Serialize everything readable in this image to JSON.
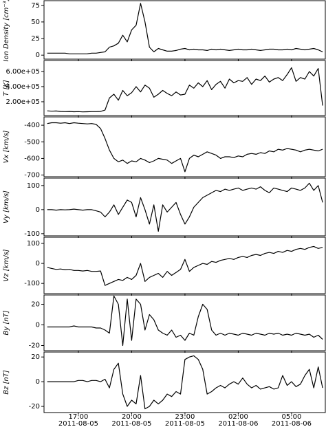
{
  "chart_data": {
    "type": "line",
    "x": [
      "2011-08-05 15:15",
      "2011-08-05 15:30",
      "2011-08-05 15:45",
      "2011-08-05 16:00",
      "2011-08-05 16:15",
      "2011-08-05 16:30",
      "2011-08-05 16:45",
      "2011-08-05 17:00",
      "2011-08-05 17:15",
      "2011-08-05 17:30",
      "2011-08-05 17:45",
      "2011-08-05 18:00",
      "2011-08-05 18:15",
      "2011-08-05 18:30",
      "2011-08-05 18:45",
      "2011-08-05 19:00",
      "2011-08-05 19:15",
      "2011-08-05 19:30",
      "2011-08-05 19:45",
      "2011-08-05 20:00",
      "2011-08-05 20:15",
      "2011-08-05 20:30",
      "2011-08-05 20:45",
      "2011-08-05 21:00",
      "2011-08-05 21:15",
      "2011-08-05 21:30",
      "2011-08-05 21:45",
      "2011-08-05 22:00",
      "2011-08-05 22:15",
      "2011-08-05 22:30",
      "2011-08-05 22:45",
      "2011-08-05 23:00",
      "2011-08-05 23:15",
      "2011-08-05 23:30",
      "2011-08-05 23:45",
      "2011-08-06 00:00",
      "2011-08-06 00:15",
      "2011-08-06 00:30",
      "2011-08-06 00:45",
      "2011-08-06 01:00",
      "2011-08-06 01:15",
      "2011-08-06 01:30",
      "2011-08-06 01:45",
      "2011-08-06 02:00",
      "2011-08-06 02:15",
      "2011-08-06 02:30",
      "2011-08-06 02:45",
      "2011-08-06 03:00",
      "2011-08-06 03:15",
      "2011-08-06 03:30",
      "2011-08-06 03:45",
      "2011-08-06 04:00",
      "2011-08-06 04:15",
      "2011-08-06 04:30",
      "2011-08-06 04:45",
      "2011-08-06 05:00",
      "2011-08-06 05:15",
      "2011-08-06 05:30",
      "2011-08-06 05:45",
      "2011-08-06 06:00",
      "2011-08-06 06:15",
      "2011-08-06 06:30",
      "2011-08-06 06:45"
    ],
    "xlim": [
      "2011-08-05 15:04",
      "2011-08-06 06:54"
    ],
    "xticks": [
      {
        "value": "2011-08-05 17:00",
        "label": "17:00",
        "sublabel": "2011-08-05"
      },
      {
        "value": "2011-08-05 20:00",
        "label": "20:00",
        "sublabel": "2011-08-05"
      },
      {
        "value": "2011-08-05 23:00",
        "label": "23:00",
        "sublabel": "2011-08-05"
      },
      {
        "value": "2011-08-06 02:00",
        "label": "02:00",
        "sublabel": "2011-08-06"
      },
      {
        "value": "2011-08-06 05:00",
        "label": "05:00",
        "sublabel": "2011-08-06"
      }
    ],
    "panels": [
      {
        "ylabel": "Ion Density [cm⁻³]",
        "ylim": [
          -6,
          82
        ],
        "yticks": [
          0,
          25,
          50,
          75
        ],
        "color": "#000000",
        "values": [
          3,
          3,
          3,
          3,
          3,
          2,
          2,
          2,
          2,
          2,
          3,
          3,
          4,
          5,
          12,
          14,
          18,
          30,
          20,
          38,
          45,
          78,
          50,
          12,
          5,
          10,
          8,
          6,
          6,
          7,
          9,
          10,
          8,
          9,
          8,
          8,
          7,
          9,
          8,
          9,
          8,
          7,
          8,
          9,
          8,
          8,
          9,
          8,
          7,
          8,
          9,
          9,
          8,
          8,
          9,
          8,
          10,
          9,
          8,
          9,
          10,
          8,
          5
        ]
      },
      {
        "ylabel": "T [K]",
        "ylim": [
          18000,
          745000
        ],
        "yticks": [
          {
            "value": 200000,
            "label": "2.00e+05"
          },
          {
            "value": 400000,
            "label": "4.00e+05"
          },
          {
            "value": 600000,
            "label": "6.00e+05"
          }
        ],
        "color": "#000000",
        "values": [
          80000,
          75000,
          78000,
          72000,
          70000,
          72000,
          68000,
          70000,
          66000,
          68000,
          70000,
          70000,
          72000,
          90000,
          250000,
          300000,
          220000,
          350000,
          280000,
          320000,
          400000,
          330000,
          420000,
          380000,
          260000,
          300000,
          350000,
          310000,
          280000,
          330000,
          290000,
          300000,
          420000,
          380000,
          450000,
          400000,
          480000,
          360000,
          430000,
          470000,
          380000,
          500000,
          450000,
          480000,
          470000,
          520000,
          430000,
          500000,
          480000,
          540000,
          460000,
          500000,
          520000,
          480000,
          560000,
          650000,
          470000,
          520000,
          500000,
          600000,
          540000,
          640000,
          150000
        ]
      },
      {
        "ylabel": "Vx [km/s]",
        "ylim": [
          -710,
          -350
        ],
        "yticks": [
          -700,
          -600,
          -500,
          -400
        ],
        "color": "#000000",
        "values": [
          -390,
          -385,
          -385,
          -388,
          -385,
          -390,
          -385,
          -388,
          -390,
          -392,
          -390,
          -395,
          -420,
          -480,
          -550,
          -600,
          -620,
          -610,
          -630,
          -615,
          -620,
          -600,
          -610,
          -625,
          -615,
          -600,
          -605,
          -610,
          -630,
          -615,
          -600,
          -680,
          -600,
          -580,
          -590,
          -575,
          -560,
          -570,
          -580,
          -600,
          -590,
          -590,
          -595,
          -585,
          -590,
          -575,
          -570,
          -575,
          -565,
          -570,
          -555,
          -560,
          -545,
          -550,
          -540,
          -545,
          -550,
          -560,
          -550,
          -545,
          -550,
          -555,
          -545
        ]
      },
      {
        "ylabel": "Vy [km/s]",
        "ylim": [
          -109,
          131
        ],
        "yticks": [
          -100,
          0,
          100
        ],
        "color": "#000000",
        "values": [
          0,
          0,
          -2,
          0,
          -1,
          0,
          2,
          0,
          -2,
          0,
          0,
          -5,
          -10,
          -30,
          -10,
          20,
          -20,
          10,
          40,
          30,
          -30,
          50,
          0,
          -60,
          20,
          -90,
          20,
          -10,
          10,
          30,
          -20,
          -60,
          -30,
          10,
          30,
          50,
          60,
          70,
          80,
          75,
          85,
          80,
          85,
          90,
          80,
          85,
          90,
          85,
          95,
          80,
          70,
          90,
          85,
          80,
          75,
          90,
          85,
          80,
          90,
          110,
          80,
          100,
          30
        ]
      },
      {
        "ylabel": "Vz [km/s]",
        "ylim": [
          -151,
          131
        ],
        "yticks": [
          -100,
          0,
          100
        ],
        "color": "#000000",
        "values": [
          -20,
          -25,
          -30,
          -28,
          -32,
          -30,
          -35,
          -35,
          -38,
          -35,
          -40,
          -40,
          -38,
          -110,
          -100,
          -90,
          -80,
          -85,
          -70,
          -80,
          -60,
          0,
          -90,
          -70,
          -60,
          -50,
          -70,
          -40,
          -60,
          -45,
          -30,
          20,
          -40,
          -20,
          -10,
          0,
          -5,
          10,
          5,
          15,
          20,
          25,
          20,
          30,
          35,
          30,
          40,
          45,
          40,
          50,
          55,
          50,
          60,
          55,
          65,
          60,
          70,
          75,
          70,
          80,
          85,
          75,
          80
        ]
      },
      {
        "ylabel": "By [nT]",
        "ylim": [
          -25,
          29
        ],
        "yticks": [
          -20,
          0,
          20
        ],
        "color": "#000000",
        "values": [
          -2,
          -2,
          -2,
          -2,
          -2,
          -2,
          -1,
          -2,
          -2,
          -2,
          -2,
          -3,
          -3,
          -5,
          -8,
          28,
          20,
          -20,
          25,
          -15,
          25,
          20,
          -5,
          10,
          5,
          -5,
          -8,
          -10,
          -5,
          -12,
          -10,
          -15,
          -8,
          -10,
          8,
          20,
          15,
          -5,
          -10,
          -8,
          -10,
          -8,
          -9,
          -10,
          -8,
          -9,
          -10,
          -8,
          -9,
          -10,
          -8,
          -9,
          -8,
          -10,
          -9,
          -10,
          -8,
          -9,
          -10,
          -9,
          -12,
          -10,
          -14
        ]
      },
      {
        "ylabel": "Bz [nT]",
        "ylim": [
          -25,
          24
        ],
        "yticks": [
          -20,
          0,
          20
        ],
        "color": "#000000",
        "values": [
          0,
          0,
          0,
          0,
          0,
          0,
          0,
          1,
          1,
          0,
          1,
          1,
          0,
          2,
          -5,
          10,
          15,
          -10,
          -20,
          -15,
          -18,
          5,
          -22,
          -20,
          -15,
          -18,
          -15,
          -10,
          -12,
          -8,
          -10,
          18,
          20,
          21,
          18,
          10,
          -10,
          -8,
          -5,
          -3,
          -5,
          -2,
          0,
          -2,
          3,
          -2,
          -5,
          -3,
          -6,
          -5,
          -4,
          -6,
          -5,
          5,
          -3,
          0,
          -4,
          -2,
          5,
          10,
          -5,
          12,
          -5
        ]
      }
    ]
  }
}
